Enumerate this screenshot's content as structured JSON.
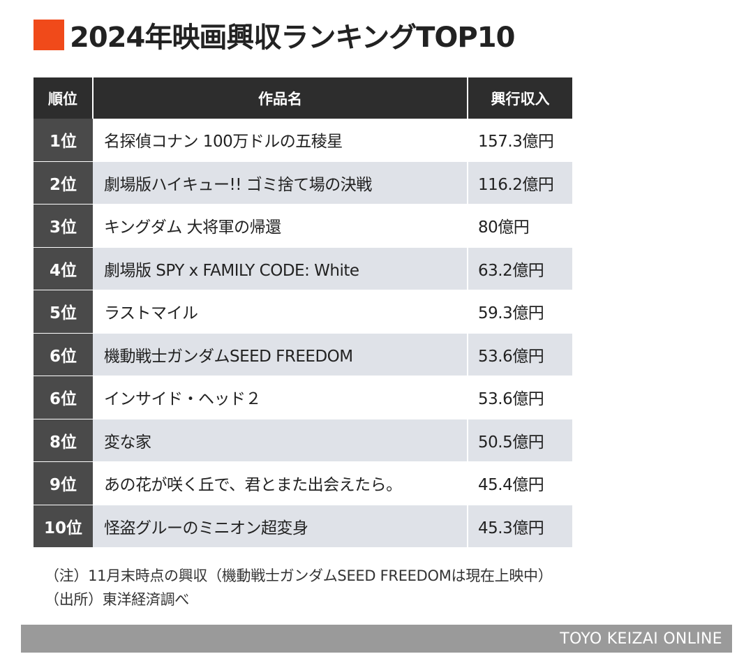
{
  "title": "2024年映画興収ランキングTOP10",
  "colors": {
    "accent": "#f04a1a",
    "header_bg": "#2d2d2d",
    "rank_bg": "#4a4a4a",
    "row_light": "#ffffff",
    "row_shaded": "#dfe2e8",
    "footer_bg": "#9a9a9a"
  },
  "chart_data": {
    "type": "table",
    "columns": [
      "順位",
      "作品名",
      "興行収入"
    ],
    "rows": [
      {
        "rank": "1位",
        "title": "名探偵コナン 100万ドルの五稜星",
        "gross": "157.3億円"
      },
      {
        "rank": "2位",
        "title": "劇場版ハイキュー!! ゴミ捨て場の決戦",
        "gross": "116.2億円"
      },
      {
        "rank": "3位",
        "title": "キングダム 大将軍の帰還",
        "gross": "80億円"
      },
      {
        "rank": "4位",
        "title": "劇場版 SPY x FAMILY CODE: White",
        "gross": "63.2億円"
      },
      {
        "rank": "5位",
        "title": "ラストマイル",
        "gross": "59.3億円"
      },
      {
        "rank": "6位",
        "title": "機動戦士ガンダムSEED FREEDOM",
        "gross": "53.6億円"
      },
      {
        "rank": "6位",
        "title": "インサイド・ヘッド２",
        "gross": "53.6億円"
      },
      {
        "rank": "8位",
        "title": "変な家",
        "gross": "50.5億円"
      },
      {
        "rank": "9位",
        "title": "あの花が咲く丘で、君とまた出会えたら。",
        "gross": "45.4億円"
      },
      {
        "rank": "10位",
        "title": "怪盗グルーのミニオン超変身",
        "gross": "45.3億円"
      }
    ]
  },
  "notes": [
    "（注）11月末時点の興収（機動戦士ガンダムSEED FREEDOMは現在上映中）",
    "（出所）東洋経済調べ"
  ],
  "footer": "TOYO KEIZAI ONLINE"
}
